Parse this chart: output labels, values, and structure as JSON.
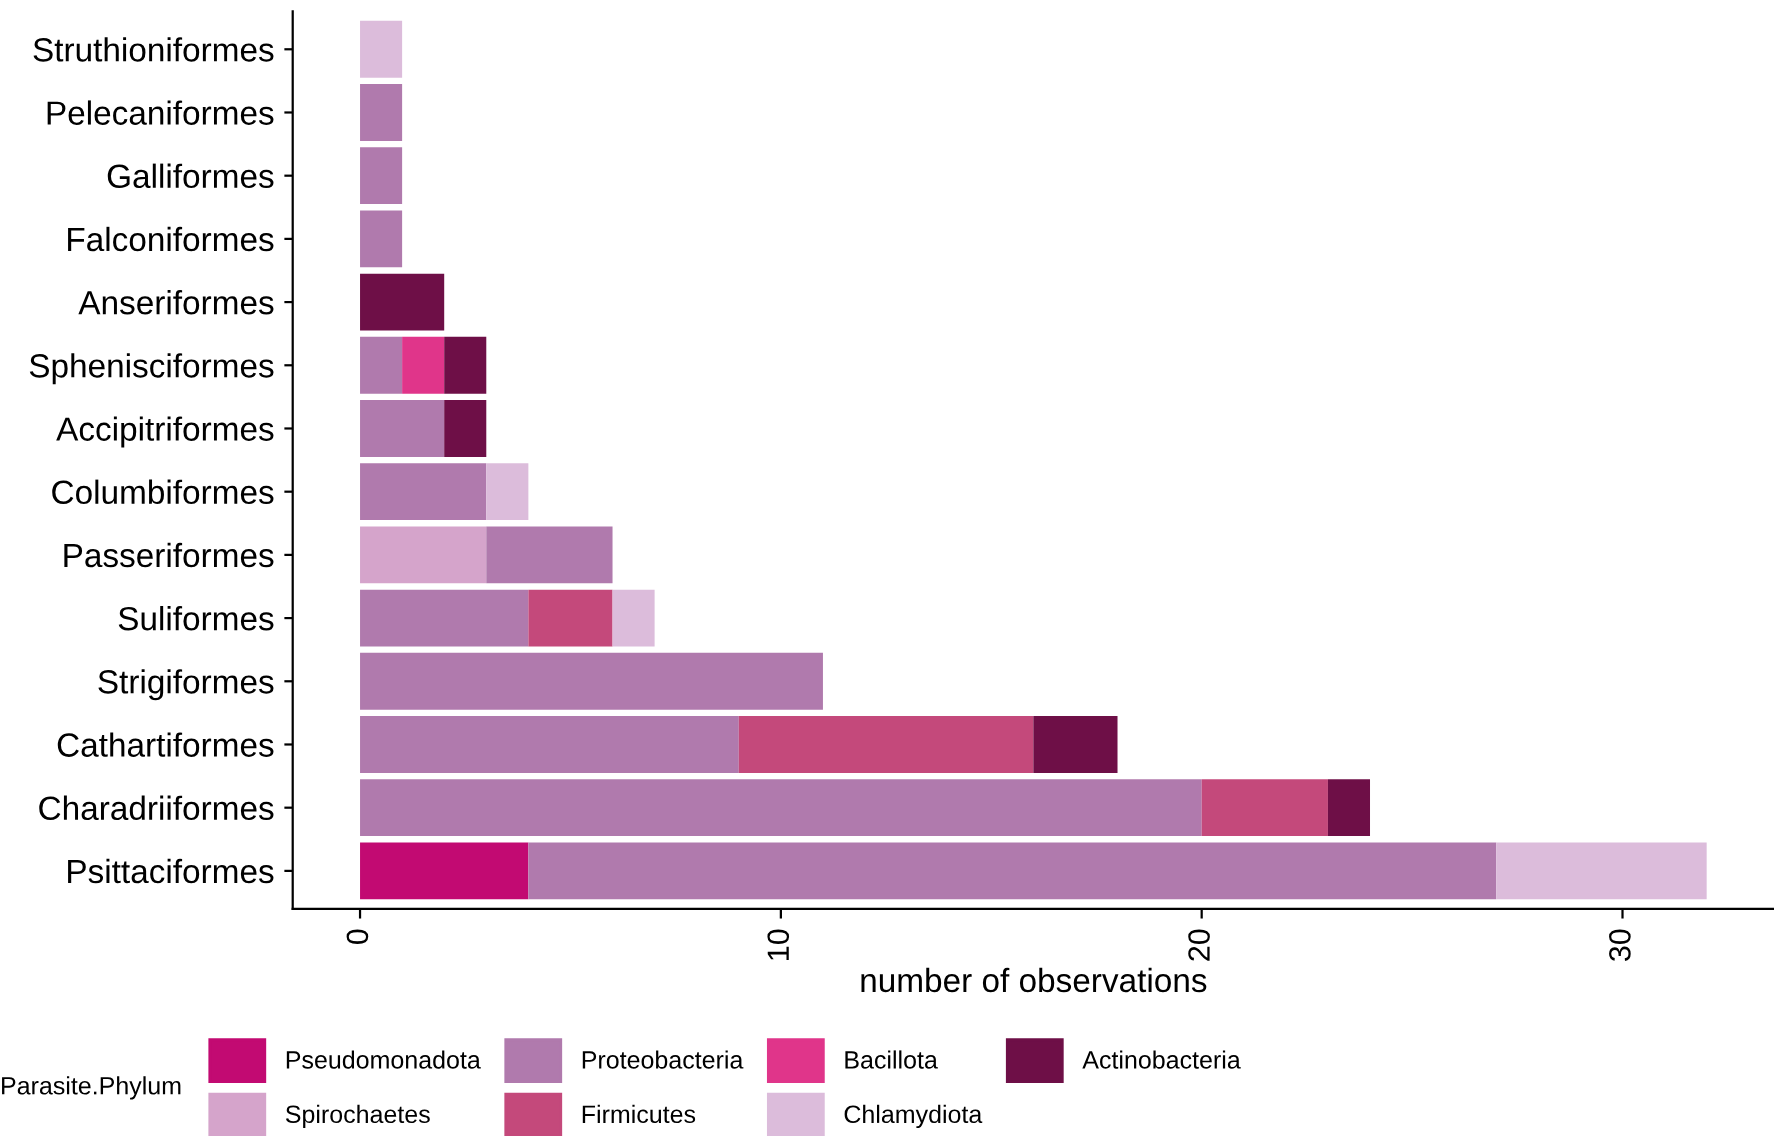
{
  "chart_data": {
    "type": "bar",
    "orientation": "horizontal",
    "stacked": true,
    "xlabel": "number of observations",
    "legend_title": "Parasite.Phylum",
    "legend": "bottom",
    "grid": false,
    "categories": [
      "Struthioniformes",
      "Pelecaniformes",
      "Galliformes",
      "Falconiformes",
      "Anseriformes",
      "Sphenisciformes",
      "Accipitriformes",
      "Columbiformes",
      "Passeriformes",
      "Suliformes",
      "Strigiformes",
      "Cathartiformes",
      "Charadriiformes",
      "Psittaciformes"
    ],
    "series": [
      {
        "name": "Pseudomonadota",
        "color": "#c20a72",
        "values": [
          null,
          null,
          null,
          null,
          null,
          null,
          null,
          null,
          null,
          null,
          null,
          null,
          null,
          4
        ]
      },
      {
        "name": "Spirochaetes",
        "color": "#d5a4cb",
        "values": [
          null,
          null,
          null,
          null,
          null,
          null,
          null,
          null,
          3,
          null,
          null,
          null,
          null,
          null
        ]
      },
      {
        "name": "Proteobacteria",
        "color": "#b07aad",
        "values": [
          null,
          1,
          1,
          1,
          null,
          1,
          2,
          3,
          3,
          4,
          11,
          9,
          20,
          23
        ]
      },
      {
        "name": "Firmicutes",
        "color": "#c4497b",
        "values": [
          null,
          null,
          null,
          null,
          null,
          null,
          null,
          null,
          null,
          2,
          null,
          7,
          3,
          null
        ]
      },
      {
        "name": "Bacillota",
        "color": "#e0358a",
        "values": [
          null,
          null,
          null,
          null,
          null,
          1,
          null,
          null,
          null,
          null,
          null,
          null,
          null,
          null
        ]
      },
      {
        "name": "Chlamydiota",
        "color": "#dcbcdb",
        "values": [
          1,
          null,
          null,
          null,
          null,
          null,
          null,
          1,
          null,
          1,
          null,
          null,
          null,
          5
        ]
      },
      {
        "name": "Actinobacteria",
        "color": "#6e0f47",
        "values": [
          null,
          null,
          null,
          null,
          2,
          1,
          1,
          null,
          null,
          null,
          null,
          2,
          1,
          null
        ]
      }
    ],
    "xlim": [
      -1.6,
      33.6
    ],
    "xticks": [
      0,
      10,
      20,
      30
    ]
  }
}
